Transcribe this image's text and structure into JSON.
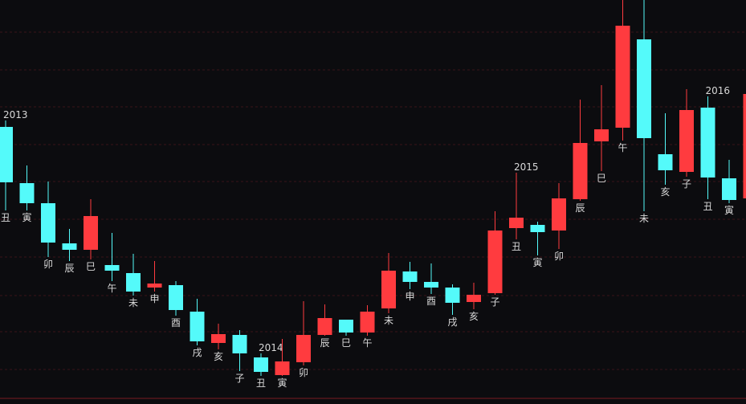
{
  "chart_data": {
    "type": "candlestick",
    "categories": [
      "丑",
      "寅",
      "卯",
      "辰",
      "巳",
      "午",
      "未",
      "申",
      "酉",
      "戌",
      "亥",
      "子",
      "丑",
      "寅",
      "卯",
      "辰",
      "巳",
      "午",
      "未",
      "申",
      "酉",
      "戌",
      "亥",
      "子",
      "丑",
      "寅",
      "卯",
      "辰",
      "巳",
      "午",
      "未",
      "亥",
      "子",
      "丑",
      "寅",
      null
    ],
    "year_labels": [
      "2013",
      null,
      null,
      null,
      null,
      null,
      null,
      null,
      null,
      null,
      null,
      null,
      "2014",
      null,
      null,
      null,
      null,
      null,
      null,
      null,
      null,
      null,
      null,
      null,
      "2015",
      null,
      null,
      null,
      null,
      null,
      null,
      null,
      null,
      "2016",
      null,
      null
    ],
    "open": [
      345,
      275,
      250,
      200,
      192,
      173,
      163,
      145,
      148,
      115,
      76,
      86,
      58,
      36,
      52,
      86,
      105,
      89,
      119,
      165,
      152,
      145,
      127,
      138,
      219,
      223,
      216,
      255,
      327,
      344,
      454,
      311,
      289,
      369,
      281,
      256
    ],
    "high": [
      353,
      297,
      277,
      218,
      255,
      213,
      187,
      178,
      153,
      131,
      100,
      92,
      63,
      81,
      128,
      124,
      105,
      123,
      188,
      177,
      175,
      149,
      151,
      240,
      288,
      227,
      275,
      379,
      397,
      503,
      503,
      362,
      392,
      383,
      304,
      386
    ],
    "low": [
      241,
      241,
      183,
      178,
      180,
      153,
      135,
      140,
      110,
      73,
      68,
      41,
      35,
      35,
      48,
      85,
      85,
      85,
      113,
      143,
      137,
      111,
      118,
      136,
      205,
      185,
      193,
      253,
      290,
      328,
      240,
      273,
      283,
      255,
      250,
      256
    ],
    "close": [
      276,
      250,
      201,
      192,
      234,
      166,
      140,
      150,
      117,
      78,
      87,
      63,
      40,
      53,
      86,
      107,
      89,
      115,
      166,
      152,
      145,
      126,
      136,
      216,
      232,
      214,
      256,
      325,
      342,
      471,
      331,
      291,
      366,
      282,
      254,
      386
    ],
    "up_color": "#ff3b3f",
    "down_color": "#54fafa",
    "ylim": [
      0,
      503
    ]
  }
}
